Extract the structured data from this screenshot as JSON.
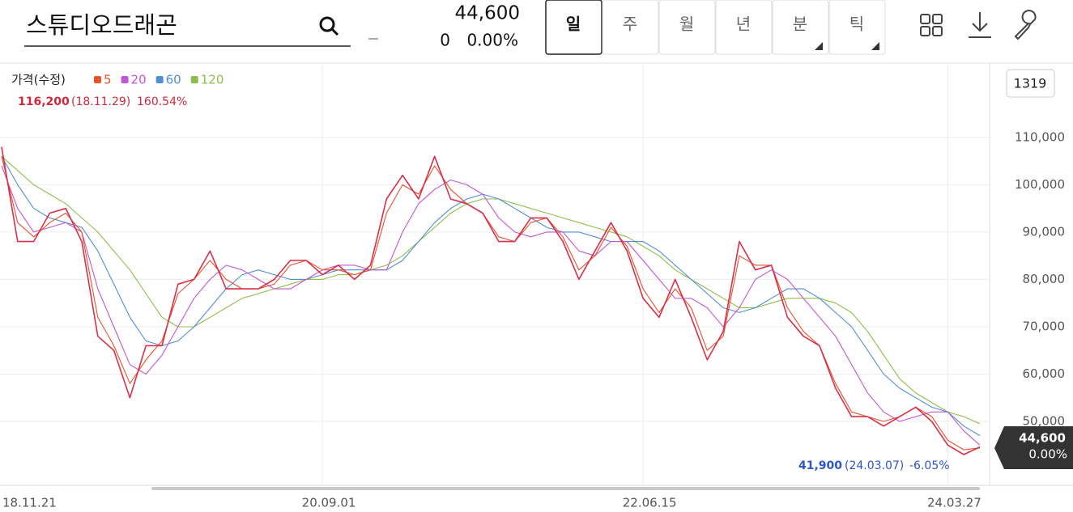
{
  "header": {
    "title": "스튜디오드래곤",
    "price": "44,600",
    "change": "0",
    "change_pct": "0.00%",
    "tabs": [
      "일",
      "주",
      "월",
      "년",
      "분",
      "틱"
    ]
  },
  "chart_data": {
    "type": "line",
    "count": 1319,
    "categories": [
      "18.11.21",
      null,
      null,
      null,
      null,
      null,
      null,
      null,
      null,
      null,
      null,
      null,
      null,
      null,
      null,
      null,
      null,
      null,
      null,
      null,
      "20.09.01",
      null,
      null,
      null,
      null,
      null,
      null,
      null,
      null,
      null,
      null,
      null,
      null,
      null,
      null,
      null,
      null,
      null,
      null,
      null,
      "22.06.15",
      null,
      null,
      null,
      null,
      null,
      null,
      null,
      null,
      null,
      null,
      null,
      null,
      null,
      null,
      null,
      null,
      null,
      null,
      "24.03.27",
      null,
      null
    ],
    "series": [
      {
        "name": "가격(수정)",
        "color": "#d8304a",
        "values": [
          108000,
          88000,
          88000,
          94000,
          95000,
          88000,
          68000,
          65000,
          55000,
          66000,
          66000,
          79000,
          80000,
          86000,
          78000,
          78000,
          78000,
          80000,
          84000,
          84000,
          81000,
          83000,
          80000,
          83000,
          97000,
          102000,
          97000,
          106000,
          97000,
          96000,
          94000,
          88000,
          88000,
          93000,
          93000,
          88000,
          80000,
          86000,
          92000,
          86000,
          76000,
          72000,
          80000,
          72000,
          63000,
          69000,
          88000,
          82000,
          83000,
          72000,
          68000,
          66000,
          57000,
          51000,
          51000,
          49000,
          51000,
          53000,
          50000,
          45000,
          43000,
          44600
        ]
      },
      {
        "name": "5",
        "color": "#e8532b",
        "values": [
          106000,
          92000,
          89000,
          92000,
          94000,
          90000,
          72000,
          66000,
          58000,
          63000,
          67000,
          77000,
          80000,
          84000,
          80000,
          78000,
          78000,
          79000,
          83000,
          84000,
          82000,
          82000,
          81000,
          82000,
          94000,
          100000,
          98000,
          104000,
          99000,
          96000,
          94000,
          89000,
          88000,
          92000,
          93000,
          89000,
          82000,
          85000,
          91000,
          87000,
          78000,
          73000,
          78000,
          74000,
          65000,
          68000,
          85000,
          83000,
          83000,
          74000,
          69000,
          66000,
          58000,
          52000,
          51000,
          50000,
          51000,
          53000,
          51000,
          46000,
          44000,
          44400
        ]
      },
      {
        "name": "20",
        "color": "#c455d6",
        "values": [
          104000,
          95000,
          90000,
          91000,
          92000,
          90000,
          78000,
          70000,
          62000,
          60000,
          64000,
          70000,
          76000,
          80000,
          83000,
          82000,
          80000,
          78000,
          78000,
          80000,
          82000,
          83000,
          83000,
          82000,
          82000,
          90000,
          96000,
          99000,
          101000,
          100000,
          98000,
          93000,
          90000,
          89000,
          90000,
          90000,
          86000,
          85000,
          88000,
          88000,
          84000,
          80000,
          76000,
          76000,
          74000,
          70000,
          74000,
          80000,
          82000,
          80000,
          76000,
          72000,
          68000,
          62000,
          56000,
          52000,
          50000,
          51000,
          52000,
          52000,
          48000,
          45000
        ]
      },
      {
        "name": "60",
        "color": "#4f8fd6",
        "values": [
          106000,
          100000,
          95000,
          93000,
          92000,
          91000,
          86000,
          79000,
          72000,
          67000,
          66000,
          67000,
          70000,
          74000,
          78000,
          81000,
          82000,
          81000,
          80000,
          80000,
          81000,
          82000,
          82000,
          82000,
          82000,
          84000,
          88000,
          92000,
          95000,
          97000,
          98000,
          97000,
          95000,
          93000,
          91000,
          90000,
          90000,
          89000,
          88000,
          88000,
          88000,
          86000,
          83000,
          80000,
          77000,
          74000,
          73000,
          74000,
          76000,
          78000,
          78000,
          76000,
          73000,
          70000,
          65000,
          60000,
          57000,
          55000,
          53000,
          52000,
          49000,
          47000
        ]
      },
      {
        "name": "120",
        "color": "#8cbf4a",
        "values": [
          106000,
          103000,
          100000,
          98000,
          96000,
          93000,
          90000,
          86000,
          82000,
          77000,
          72000,
          70000,
          70000,
          72000,
          74000,
          76000,
          77000,
          78000,
          79000,
          80000,
          80000,
          81000,
          81000,
          82000,
          83000,
          85000,
          88000,
          91000,
          94000,
          96000,
          97000,
          97000,
          96000,
          95000,
          94000,
          93000,
          92000,
          91000,
          90000,
          89000,
          87000,
          85000,
          82000,
          80000,
          78000,
          76000,
          74000,
          74000,
          75000,
          76000,
          76000,
          76000,
          75000,
          73000,
          69000,
          64000,
          59000,
          56000,
          54000,
          52000,
          51000,
          49500
        ]
      }
    ],
    "ylim": [
      36500,
      125700
    ],
    "yticks": [
      {
        "value": 50000,
        "label": "50,000"
      },
      {
        "value": 60000,
        "label": "60,000"
      },
      {
        "value": 70000,
        "label": "70,000"
      },
      {
        "value": 80000,
        "label": "80,000"
      },
      {
        "value": 90000,
        "label": "90,000"
      },
      {
        "value": 100000,
        "label": "100,000"
      },
      {
        "value": 110000,
        "label": "110,000"
      }
    ],
    "grid": true,
    "high": {
      "price": "116,200",
      "date": "(18.11.29)",
      "pct": "160.54%"
    },
    "low": {
      "price": "41,900",
      "date": "(24.03.07)",
      "pct": "-6.05%"
    },
    "last": {
      "price": "44,600",
      "pct": "0.00%"
    }
  }
}
